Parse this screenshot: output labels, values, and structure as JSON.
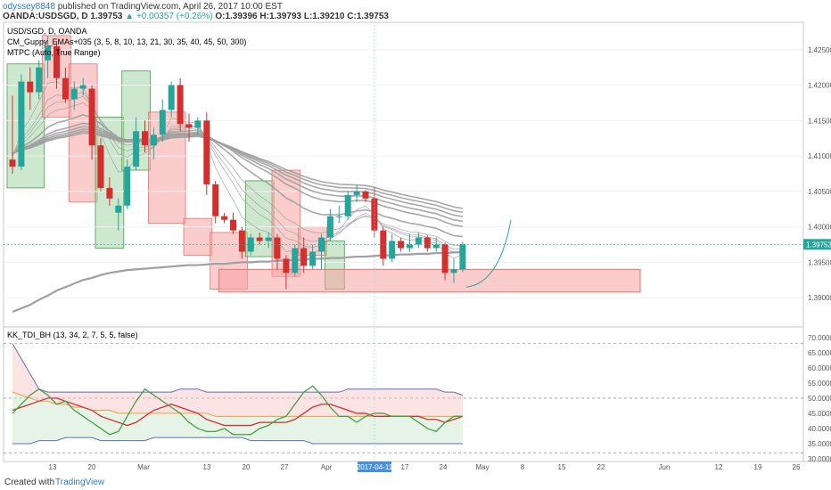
{
  "header": {
    "user": "odyssey8848",
    "published_text": "published on TradingView.com, April 26, 2017 10:00 EST",
    "symbol_line": "OANDA:USDSGD, D",
    "last_label": "1.39753",
    "change_text": "▲ +0.00357 (+0.26%)",
    "open": "O:1.39396",
    "high": "H:1.39793",
    "low": "L:1.39210",
    "close": "C:1.39753"
  },
  "legend": {
    "title": "USD/SGD, D, OANDA",
    "guppy": "CM_Guppy_EMAs+035 (3, 5, 8, 10, 13, 21, 30, 35, 40, 45, 50, 300)",
    "mtpc": "MTPC (Auto, True Range)",
    "tdi": "KK_TDI_BH (13, 34, 2, 7, 5, 5, false)"
  },
  "footer": {
    "created_with": "Created with",
    "brand": "TradingView"
  },
  "colors": {
    "up": "#26a69a",
    "down": "#d32f2f",
    "box_green": "#a5d6a7",
    "box_red": "#f8a3a3",
    "ema": "#9e9e9e"
  },
  "chart_data": [
    {
      "type": "candlestick",
      "title": "USD/SGD, D, OANDA",
      "ylim": [
        1.3865,
        1.4285
      ],
      "price_ticks": [
        "1.42500",
        "1.42000",
        "1.41500",
        "1.41000",
        "1.40500",
        "1.40000",
        "1.39500",
        "1.39000"
      ],
      "last_price": "1.39753",
      "x_ticks": [
        "13",
        "20",
        "Mar",
        "13",
        "20",
        "27",
        "Apr",
        "2017-04-11",
        "17",
        "24",
        "May",
        "8",
        "15",
        "22",
        "Jun",
        "12",
        "19",
        "26"
      ],
      "candles": [
        {
          "o": 1.4095,
          "h": 1.4185,
          "l": 1.4075,
          "c": 1.4085
        },
        {
          "o": 1.4085,
          "h": 1.4215,
          "l": 1.408,
          "c": 1.4205
        },
        {
          "o": 1.4205,
          "h": 1.4225,
          "l": 1.4165,
          "c": 1.419
        },
        {
          "o": 1.419,
          "h": 1.4235,
          "l": 1.418,
          "c": 1.4225
        },
        {
          "o": 1.4235,
          "h": 1.427,
          "l": 1.421,
          "c": 1.4255
        },
        {
          "o": 1.4255,
          "h": 1.4262,
          "l": 1.4195,
          "c": 1.421
        },
        {
          "o": 1.421,
          "h": 1.4225,
          "l": 1.4175,
          "c": 1.418
        },
        {
          "o": 1.418,
          "h": 1.4205,
          "l": 1.4165,
          "c": 1.4195
        },
        {
          "o": 1.4195,
          "h": 1.421,
          "l": 1.4185,
          "c": 1.42
        },
        {
          "o": 1.4195,
          "h": 1.42,
          "l": 1.4095,
          "c": 1.4115
        },
        {
          "o": 1.4115,
          "h": 1.4125,
          "l": 1.405,
          "c": 1.4055
        },
        {
          "o": 1.4055,
          "h": 1.407,
          "l": 1.403,
          "c": 1.404
        },
        {
          "o": 1.402,
          "h": 1.404,
          "l": 1.3995,
          "c": 1.403
        },
        {
          "o": 1.403,
          "h": 1.4095,
          "l": 1.4025,
          "c": 1.4085
        },
        {
          "o": 1.4085,
          "h": 1.4155,
          "l": 1.408,
          "c": 1.4135
        },
        {
          "o": 1.4135,
          "h": 1.415,
          "l": 1.4105,
          "c": 1.4115
        },
        {
          "o": 1.4115,
          "h": 1.414,
          "l": 1.4095,
          "c": 1.413
        },
        {
          "o": 1.413,
          "h": 1.418,
          "l": 1.412,
          "c": 1.4165
        },
        {
          "o": 1.4165,
          "h": 1.4205,
          "l": 1.4155,
          "c": 1.42
        },
        {
          "o": 1.42,
          "h": 1.421,
          "l": 1.4135,
          "c": 1.4145
        },
        {
          "o": 1.4145,
          "h": 1.416,
          "l": 1.412,
          "c": 1.414
        },
        {
          "o": 1.414,
          "h": 1.4155,
          "l": 1.413,
          "c": 1.415
        },
        {
          "o": 1.415,
          "h": 1.4162,
          "l": 1.4045,
          "c": 1.406
        },
        {
          "o": 1.406,
          "h": 1.4065,
          "l": 1.4005,
          "c": 1.4015
        },
        {
          "o": 1.4015,
          "h": 1.402,
          "l": 1.4005,
          "c": 1.401
        },
        {
          "o": 1.401,
          "h": 1.402,
          "l": 1.399,
          "c": 1.3995
        },
        {
          "o": 1.3995,
          "h": 1.4,
          "l": 1.3955,
          "c": 1.3965
        },
        {
          "o": 1.3965,
          "h": 1.399,
          "l": 1.396,
          "c": 1.3985
        },
        {
          "o": 1.3985,
          "h": 1.3992,
          "l": 1.3975,
          "c": 1.398
        },
        {
          "o": 1.398,
          "h": 1.3992,
          "l": 1.397,
          "c": 1.3985
        },
        {
          "o": 1.3985,
          "h": 1.399,
          "l": 1.394,
          "c": 1.3955
        },
        {
          "o": 1.3955,
          "h": 1.396,
          "l": 1.3912,
          "c": 1.3935
        },
        {
          "o": 1.3935,
          "h": 1.3975,
          "l": 1.393,
          "c": 1.397
        },
        {
          "o": 1.397,
          "h": 1.3985,
          "l": 1.3935,
          "c": 1.3945
        },
        {
          "o": 1.3945,
          "h": 1.3975,
          "l": 1.394,
          "c": 1.3965
        },
        {
          "o": 1.3965,
          "h": 1.399,
          "l": 1.394,
          "c": 1.3985
        },
        {
          "o": 1.3985,
          "h": 1.4025,
          "l": 1.398,
          "c": 1.4015
        },
        {
          "o": 1.4015,
          "h": 1.403,
          "l": 1.4005,
          "c": 1.4015
        },
        {
          "o": 1.4015,
          "h": 1.405,
          "l": 1.401,
          "c": 1.4045
        },
        {
          "o": 1.4045,
          "h": 1.406,
          "l": 1.4035,
          "c": 1.405
        },
        {
          "o": 1.405,
          "h": 1.4052,
          "l": 1.4035,
          "c": 1.404
        },
        {
          "o": 1.404,
          "h": 1.4055,
          "l": 1.3985,
          "c": 1.3995
        },
        {
          "o": 1.3995,
          "h": 1.4,
          "l": 1.3945,
          "c": 1.3955
        },
        {
          "o": 1.3955,
          "h": 1.399,
          "l": 1.395,
          "c": 1.398
        },
        {
          "o": 1.398,
          "h": 1.3985,
          "l": 1.3965,
          "c": 1.397
        },
        {
          "o": 1.397,
          "h": 1.399,
          "l": 1.3965,
          "c": 1.3975
        },
        {
          "o": 1.3975,
          "h": 1.3992,
          "l": 1.397,
          "c": 1.3985
        },
        {
          "o": 1.3985,
          "h": 1.3988,
          "l": 1.3965,
          "c": 1.397
        },
        {
          "o": 1.397,
          "h": 1.3985,
          "l": 1.3965,
          "c": 1.3975
        },
        {
          "o": 1.3975,
          "h": 1.3978,
          "l": 1.3925,
          "c": 1.3935
        },
        {
          "o": 1.3935,
          "h": 1.3955,
          "l": 1.3921,
          "c": 1.394
        },
        {
          "o": 1.394,
          "h": 1.3979,
          "l": 1.3936,
          "c": 1.3975
        }
      ],
      "boxes": [
        {
          "from": 0,
          "to": 3,
          "top": 1.423,
          "bottom": 1.4055,
          "color": "green"
        },
        {
          "from": 4,
          "to": 6,
          "top": 1.427,
          "bottom": 1.4155,
          "color": "red"
        },
        {
          "from": 7,
          "to": 9,
          "top": 1.423,
          "bottom": 1.4035,
          "color": "red"
        },
        {
          "from": 10,
          "to": 12,
          "top": 1.4155,
          "bottom": 1.397,
          "color": "green"
        },
        {
          "from": 13,
          "to": 15,
          "top": 1.422,
          "bottom": 1.408,
          "color": "green"
        },
        {
          "from": 16,
          "to": 19,
          "top": 1.4162,
          "bottom": 1.4005,
          "color": "red"
        },
        {
          "from": 20,
          "to": 22,
          "top": 1.4012,
          "bottom": 1.396,
          "color": "red"
        },
        {
          "from": 23,
          "to": 26,
          "top": 1.3992,
          "bottom": 1.3912,
          "color": "red"
        },
        {
          "from": 27,
          "to": 29,
          "top": 1.4065,
          "bottom": 1.3958,
          "color": "green"
        },
        {
          "from": 30,
          "to": 32,
          "top": 1.408,
          "bottom": 1.393,
          "color": "red"
        },
        {
          "from": 33,
          "to": 35,
          "top": 1.4,
          "bottom": 1.396,
          "color": "red"
        },
        {
          "from": 36,
          "to": 37,
          "top": 1.398,
          "bottom": 1.3912,
          "color": "green"
        }
      ],
      "ema_sma300": [
        1.388,
        1.3885,
        1.389,
        1.3897,
        1.3903,
        1.391,
        1.3915,
        1.392,
        1.3925,
        1.3928,
        1.3932,
        1.3935,
        1.3937,
        1.3939,
        1.394,
        1.3941,
        1.3942,
        1.3943,
        1.3944,
        1.3945,
        1.3946,
        1.3946,
        1.3947,
        1.3948,
        1.3948,
        1.3949,
        1.395,
        1.395,
        1.3951,
        1.3951,
        1.3952,
        1.3953,
        1.3953,
        1.3954,
        1.3955,
        1.3955,
        1.3956,
        1.3956,
        1.3957,
        1.3958,
        1.3958,
        1.3959,
        1.396,
        1.396,
        1.3961,
        1.3961,
        1.3962,
        1.3962,
        1.3963,
        1.3963,
        1.3964,
        1.3964
      ],
      "support_zone": {
        "top": 1.394,
        "bottom": 1.3908
      }
    },
    {
      "type": "line",
      "title": "KK_TDI_BH (13, 34, 2, 7, 5, 5, false)",
      "ylim": [
        30,
        72
      ],
      "y_ticks": [
        "70.0000",
        "65.0000",
        "60.0000",
        "55.0000",
        "50.0000",
        "45.0000",
        "40.0000",
        "35.0000",
        "30.0000"
      ],
      "levels": [
        68,
        50,
        32
      ],
      "series": [
        {
          "color": "#5c6bc0",
          "values": [
            68,
            63,
            58,
            53,
            52,
            52,
            52,
            52,
            52,
            52,
            52,
            52,
            52,
            52,
            52,
            52,
            52,
            52,
            52,
            53,
            53,
            53,
            52,
            52,
            52,
            52,
            52,
            52,
            52,
            52,
            52,
            52,
            52,
            52,
            52,
            52,
            52,
            52,
            53,
            53,
            53,
            53,
            53,
            53,
            53,
            53,
            53,
            53,
            53,
            52,
            52,
            51
          ]
        },
        {
          "color": "#5c6bc0",
          "values": [
            35,
            35,
            35,
            36,
            36,
            36,
            37,
            37,
            37,
            37,
            36,
            36,
            36,
            36,
            36,
            36,
            37,
            37,
            37,
            37,
            37,
            37,
            37,
            37,
            37,
            37,
            37,
            36,
            36,
            36,
            36,
            36,
            36,
            36,
            35,
            35,
            35,
            35,
            35,
            35,
            35,
            35,
            35,
            35,
            35,
            35,
            35,
            35,
            35,
            35,
            35,
            35
          ]
        },
        {
          "color": "#f59c3c",
          "values": [
            52,
            51,
            50,
            49,
            49,
            48,
            48,
            47,
            47,
            46,
            46,
            46,
            45,
            45,
            45,
            45,
            45,
            45,
            45,
            45,
            45,
            45,
            45,
            44,
            44,
            44,
            44,
            44,
            44,
            44,
            44,
            44,
            44,
            44,
            44,
            44,
            44,
            44,
            44,
            44,
            44,
            44,
            44,
            44,
            44,
            44,
            44,
            44,
            44,
            44,
            44,
            44
          ]
        },
        {
          "color": "#d32f2f",
          "values": [
            46,
            47,
            48,
            49,
            50,
            50,
            49,
            48,
            47,
            46,
            44,
            43,
            42,
            41,
            42,
            44,
            46,
            47,
            48,
            47,
            46,
            45,
            43,
            42,
            41,
            41,
            41,
            41,
            42,
            42,
            42,
            42,
            43,
            45,
            47,
            48,
            48,
            47,
            46,
            45,
            45,
            44,
            44,
            44,
            44,
            44,
            44,
            43,
            43,
            42,
            43,
            44
          ]
        },
        {
          "color": "#43a047",
          "values": [
            45,
            48,
            51,
            53,
            51,
            48,
            49,
            46,
            44,
            42,
            40,
            38,
            39,
            44,
            49,
            53,
            51,
            49,
            47,
            45,
            42,
            40,
            39,
            39,
            40,
            38,
            38,
            38,
            40,
            41,
            43,
            44,
            48,
            52,
            54,
            51,
            47,
            44,
            44,
            42,
            44,
            45,
            45,
            44,
            44,
            44,
            42,
            40,
            39,
            42,
            44,
            44
          ]
        }
      ]
    }
  ]
}
